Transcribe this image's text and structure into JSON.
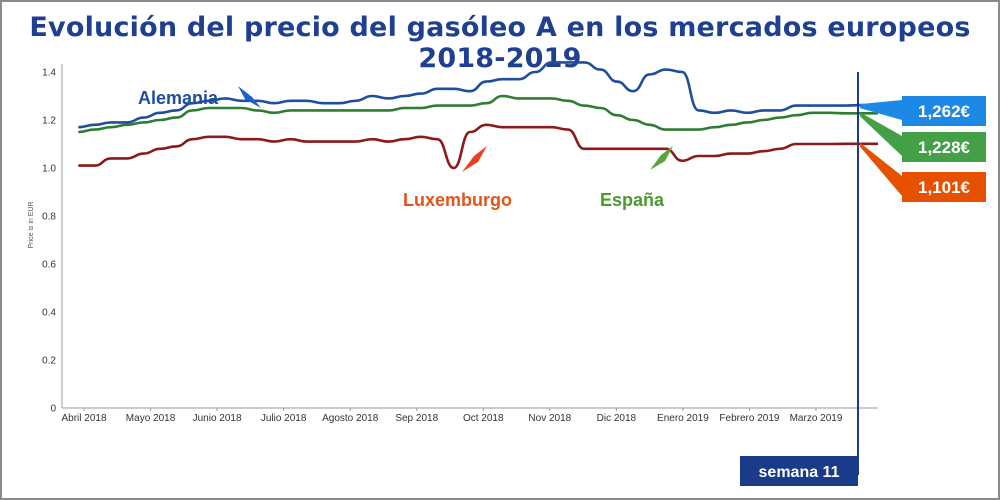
{
  "chart_data": {
    "type": "line",
    "title": "Evolución del precio del gasóleo A en los mercados europeos 2018-2019",
    "ylabel": "Price is in EUR",
    "ylim": [
      0,
      1.4
    ],
    "y_ticks": [
      "0",
      "0.2",
      "0.4",
      "0.6",
      "0.8",
      "1.0",
      "1.2",
      "1.4"
    ],
    "x_ticks": [
      "Abril 2018",
      "Mayo 2018",
      "Junio 2018",
      "Julio 2018",
      "Agosto 2018",
      "Sep 2018",
      "Oct 2018",
      "Nov 2018",
      "Dic 2018",
      "Enero 2019",
      "Febrero 2019",
      "Marzo 2019"
    ],
    "x_range": [
      0,
      50
    ],
    "series": [
      {
        "name": "Alemania",
        "color": "#1f4e9c",
        "x": [
          0,
          1,
          2,
          3,
          4,
          5,
          6,
          7,
          8,
          9,
          10,
          11,
          12,
          13,
          14,
          15,
          16,
          17,
          18,
          19,
          20,
          21,
          22,
          23,
          24,
          25,
          26,
          27,
          28,
          29,
          30,
          31,
          32,
          33,
          34,
          35,
          36,
          37,
          38,
          39,
          40,
          41,
          42,
          43,
          44,
          45,
          46,
          47,
          48,
          49
        ],
        "values": [
          1.17,
          1.18,
          1.19,
          1.19,
          1.21,
          1.23,
          1.24,
          1.27,
          1.28,
          1.29,
          1.28,
          1.28,
          1.27,
          1.28,
          1.28,
          1.27,
          1.27,
          1.28,
          1.3,
          1.29,
          1.3,
          1.31,
          1.33,
          1.33,
          1.32,
          1.36,
          1.37,
          1.37,
          1.4,
          1.44,
          1.44,
          1.44,
          1.41,
          1.36,
          1.32,
          1.39,
          1.41,
          1.4,
          1.24,
          1.23,
          1.24,
          1.23,
          1.24,
          1.24,
          1.26,
          1.26,
          1.26,
          1.26,
          1.262,
          1.262
        ]
      },
      {
        "name": "España",
        "color": "#2e7d32",
        "x": [
          0,
          1,
          2,
          3,
          4,
          5,
          6,
          7,
          8,
          9,
          10,
          11,
          12,
          13,
          14,
          15,
          16,
          17,
          18,
          19,
          20,
          21,
          22,
          23,
          24,
          25,
          26,
          27,
          28,
          29,
          30,
          31,
          32,
          33,
          34,
          35,
          36,
          37,
          38,
          39,
          40,
          41,
          42,
          43,
          44,
          45,
          46,
          47,
          48,
          49
        ],
        "values": [
          1.15,
          1.16,
          1.17,
          1.18,
          1.19,
          1.2,
          1.21,
          1.24,
          1.25,
          1.25,
          1.25,
          1.24,
          1.23,
          1.24,
          1.24,
          1.24,
          1.24,
          1.24,
          1.24,
          1.24,
          1.25,
          1.25,
          1.26,
          1.26,
          1.26,
          1.27,
          1.3,
          1.29,
          1.29,
          1.29,
          1.28,
          1.26,
          1.25,
          1.22,
          1.2,
          1.18,
          1.16,
          1.16,
          1.16,
          1.17,
          1.18,
          1.19,
          1.2,
          1.21,
          1.22,
          1.23,
          1.23,
          1.228,
          1.228,
          1.228
        ]
      },
      {
        "name": "Luxemburgo",
        "color": "#8b1a1a",
        "x": [
          0,
          1,
          2,
          3,
          4,
          5,
          6,
          7,
          8,
          9,
          10,
          11,
          12,
          13,
          14,
          15,
          16,
          17,
          18,
          19,
          20,
          21,
          22,
          23,
          24,
          25,
          26,
          27,
          28,
          29,
          30,
          31,
          32,
          33,
          34,
          35,
          36,
          37,
          38,
          39,
          40,
          41,
          42,
          43,
          44,
          45,
          46,
          47,
          48,
          49
        ],
        "values": [
          1.01,
          1.01,
          1.04,
          1.04,
          1.06,
          1.08,
          1.09,
          1.12,
          1.13,
          1.13,
          1.12,
          1.12,
          1.11,
          1.12,
          1.11,
          1.11,
          1.11,
          1.11,
          1.12,
          1.11,
          1.12,
          1.13,
          1.12,
          1.0,
          1.15,
          1.18,
          1.17,
          1.17,
          1.17,
          1.17,
          1.16,
          1.08,
          1.08,
          1.08,
          1.08,
          1.08,
          1.08,
          1.03,
          1.05,
          1.05,
          1.06,
          1.06,
          1.07,
          1.08,
          1.1,
          1.1,
          1.1,
          1.101,
          1.101,
          1.101
        ]
      }
    ]
  },
  "callouts": {
    "alemania": "Alemania",
    "luxemburgo": "Luxemburgo",
    "espana": "España"
  },
  "price_boxes": {
    "alemania": {
      "text": "1,262€",
      "color": "#1e88e5"
    },
    "espana": {
      "text": "1,228€",
      "color": "#43a047"
    },
    "luxemburgo": {
      "text": "1,101€",
      "color": "#e65100"
    }
  },
  "week_marker": {
    "label": "semana 11",
    "color": "#1a3a8a"
  },
  "label_colors": {
    "alemania": "#1f4e9c",
    "luxemburgo": "#e0561b",
    "espana": "#4a9a2e"
  }
}
